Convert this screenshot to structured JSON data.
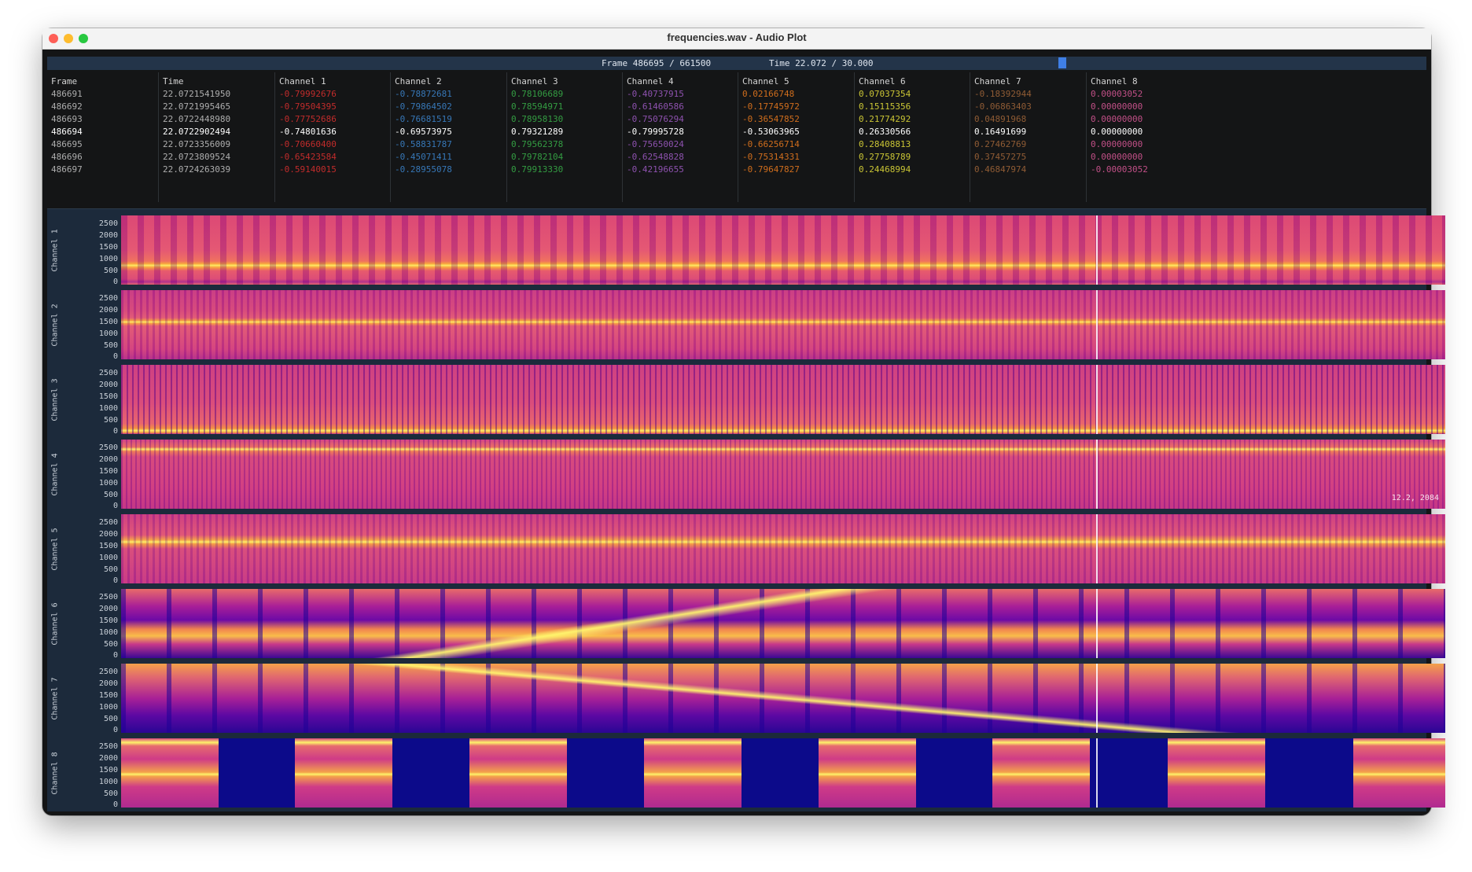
{
  "window": {
    "title": "frequencies.wav - Audio Plot"
  },
  "status": {
    "frame": "Frame 486695 / 661500",
    "time": "Time 22.072 / 30.000",
    "progress": 0.7358
  },
  "table": {
    "columns": [
      {
        "header": "Frame",
        "color": "#c8c8c8",
        "rows": [
          "486691",
          "486692",
          "486693",
          "486694",
          "486695",
          "486696",
          "486697"
        ]
      },
      {
        "header": "Time",
        "color": "#c8c8c8",
        "rows": [
          "22.0721541950",
          "22.0721995465",
          "22.0722448980",
          "22.0722902494",
          "22.0723356009",
          "22.0723809524",
          "22.0724263039"
        ]
      },
      {
        "header": "Channel 1",
        "color": "#e0302f",
        "rows": [
          "-0.79992676",
          "-0.79504395",
          "-0.77752686",
          "-0.74801636",
          "-0.70660400",
          "-0.65423584",
          "-0.59140015"
        ]
      },
      {
        "header": "Channel 2",
        "color": "#3d88d2",
        "rows": [
          "-0.78872681",
          "-0.79864502",
          "-0.76681519",
          "-0.69573975",
          "-0.58831787",
          "-0.45071411",
          "-0.28955078"
        ]
      },
      {
        "header": "Channel 3",
        "color": "#39b44a",
        "rows": [
          "0.78106689",
          "0.78594971",
          "0.78958130",
          "0.79321289",
          "0.79562378",
          "0.79782104",
          "0.79913330"
        ]
      },
      {
        "header": "Channel 4",
        "color": "#a35cc9",
        "rows": [
          "-0.40737915",
          "-0.61460586",
          "-0.75076294",
          "-0.79995728",
          "-0.75650024",
          "-0.62548828",
          "-0.42196655"
        ]
      },
      {
        "header": "Channel 5",
        "color": "#f07d1e",
        "rows": [
          "0.02166748",
          "-0.17745972",
          "-0.36547852",
          "-0.53063965",
          "-0.66256714",
          "-0.75314331",
          "-0.79647827"
        ]
      },
      {
        "header": "Channel 6",
        "color": "#e8e23a",
        "rows": [
          "0.07037354",
          "0.15115356",
          "0.21774292",
          "0.26330566",
          "0.28408813",
          "0.27758789",
          "0.24468994"
        ]
      },
      {
        "header": "Channel 7",
        "color": "#a5683a",
        "rows": [
          "-0.18392944",
          "-0.06863403",
          "0.04891968",
          "0.16491699",
          "0.27462769",
          "0.37457275",
          "0.46847974"
        ]
      },
      {
        "header": "Channel 8",
        "color": "#e05a9b",
        "rows": [
          "0.00003052",
          "0.00000000",
          "0.00000000",
          "0.00000000",
          "0.00000000",
          "0.00000000",
          "-0.00003052"
        ]
      }
    ],
    "highlight_row": 3
  },
  "plots": {
    "ticks": [
      "2500",
      "2000",
      "1500",
      "1000",
      "500",
      "0"
    ],
    "channels": [
      {
        "label": "Channel 1"
      },
      {
        "label": "Channel 2"
      },
      {
        "label": "Channel 3"
      },
      {
        "label": "Channel 4",
        "coord": "12.2, 2084"
      },
      {
        "label": "Channel 5"
      },
      {
        "label": "Channel 6"
      },
      {
        "label": "Channel 7"
      },
      {
        "label": "Channel 8"
      }
    ]
  },
  "icons": [
    "close-icon",
    "minimize-icon",
    "maximize-icon"
  ],
  "colors": {
    "status_bg": "#233449",
    "playhead": "#3f7fe6",
    "plot_bg": "#1c2a3b"
  }
}
